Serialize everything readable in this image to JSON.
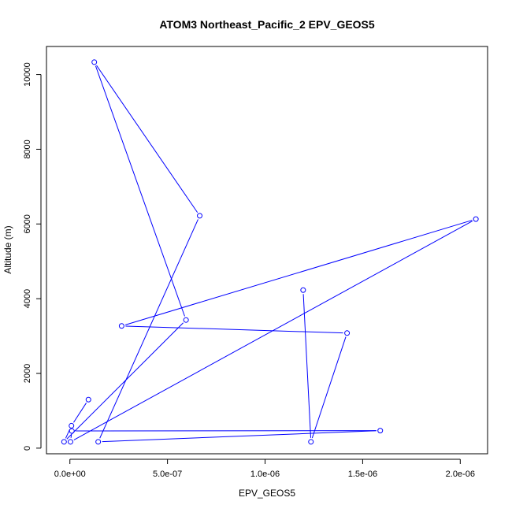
{
  "chart_data": {
    "type": "line",
    "title": "ATOM3 Northeast_Pacific_2 EPV_GEOS5",
    "xlabel": "EPV_GEOS5",
    "ylabel": "Altitude (m)",
    "xlim": [
      -1.2e-07,
      2.14e-06
    ],
    "ylim": [
      -150,
      10750
    ],
    "xticks": [
      0,
      5e-07,
      1e-06,
      1.5e-06,
      2e-06
    ],
    "xtick_labels": [
      "0.0e+00",
      "5.0e-07",
      "1.0e-06",
      "1.5e-06",
      "2.0e-06"
    ],
    "yticks": [
      0,
      2000,
      4000,
      6000,
      8000,
      10000
    ],
    "ytick_labels": [
      "0",
      "2000",
      "4000",
      "6000",
      "8000",
      "10000"
    ],
    "grid": false,
    "series": [
      {
        "color": "#0000ff",
        "marker": "open-circle",
        "line": "solid",
        "points": [
          {
            "x": 9.5e-08,
            "y": 1300
          },
          {
            "x": 8e-09,
            "y": 600
          },
          {
            "x": -3e-08,
            "y": 170
          },
          {
            "x": 5.95e-07,
            "y": 3430
          },
          {
            "x": 1.25e-07,
            "y": 10330
          },
          {
            "x": 6.65e-07,
            "y": 6220
          },
          {
            "x": 1.45e-07,
            "y": 170
          },
          {
            "x": 1.59e-06,
            "y": 470
          },
          {
            "x": 1e-08,
            "y": 460
          },
          {
            "x": 3e-09,
            "y": 170
          },
          {
            "x": 2.08e-06,
            "y": 6130
          },
          {
            "x": 2.65e-07,
            "y": 3270
          },
          {
            "x": 1.42e-06,
            "y": 3080
          },
          {
            "x": 1.235e-06,
            "y": 170
          },
          {
            "x": 1.195e-06,
            "y": 4230
          }
        ]
      }
    ]
  }
}
